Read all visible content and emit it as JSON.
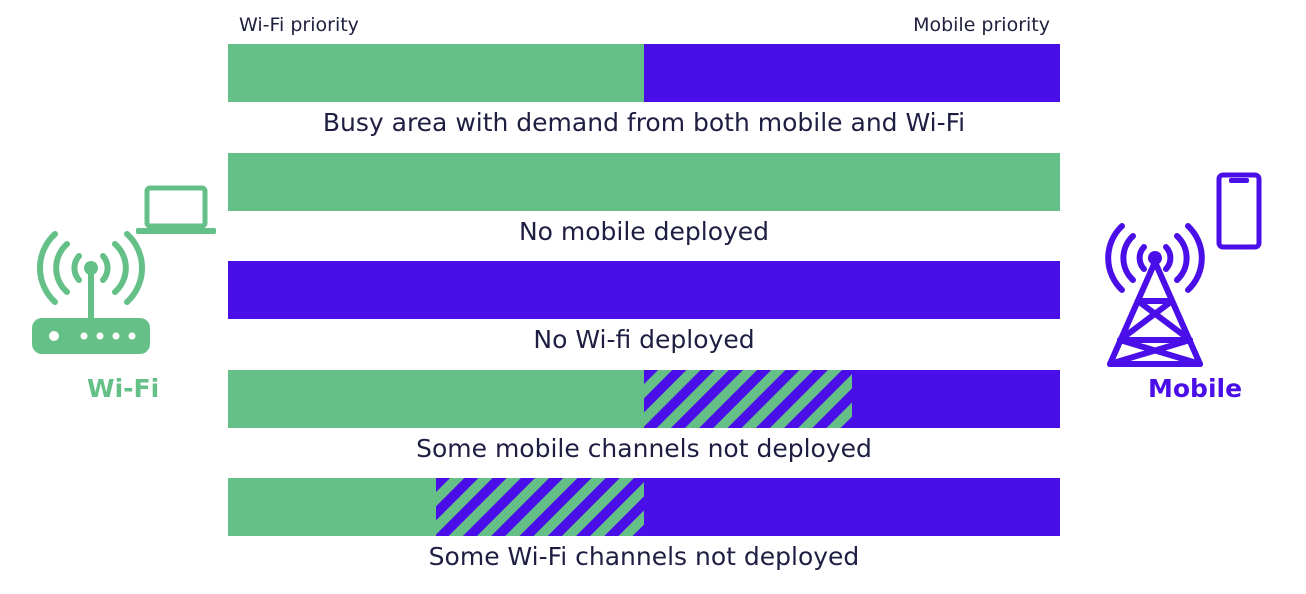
{
  "colors": {
    "wifi": "#65c088",
    "mobile": "#4a0fe8",
    "text": "#1e1e42"
  },
  "axis": {
    "left_label": "Wi-Fi priority",
    "right_label": "Mobile priority"
  },
  "rows": [
    {
      "caption": "Busy area with demand from both mobile and Wi-Fi",
      "segments": [
        {
          "type": "wifi",
          "start": 0,
          "end": 0.5
        },
        {
          "type": "mobile",
          "start": 0.5,
          "end": 1
        }
      ]
    },
    {
      "caption": "No mobile deployed",
      "segments": [
        {
          "type": "wifi",
          "start": 0,
          "end": 1
        }
      ]
    },
    {
      "caption": "No Wi-fi deployed",
      "segments": [
        {
          "type": "mobile",
          "start": 0,
          "end": 1
        }
      ]
    },
    {
      "caption": "Some mobile channels not deployed",
      "segments": [
        {
          "type": "wifi",
          "start": 0,
          "end": 0.5
        },
        {
          "type": "hatched",
          "start": 0.5,
          "end": 0.75
        },
        {
          "type": "mobile",
          "start": 0.75,
          "end": 1
        }
      ]
    },
    {
      "caption": "Some Wi-Fi channels not deployed",
      "segments": [
        {
          "type": "wifi",
          "start": 0,
          "end": 0.25
        },
        {
          "type": "hatched",
          "start": 0.25,
          "end": 0.5
        },
        {
          "type": "mobile",
          "start": 0.5,
          "end": 1
        }
      ]
    }
  ],
  "left_side": {
    "label": "Wi-Fi",
    "icons": [
      "laptop-icon",
      "wifi-router-icon"
    ]
  },
  "right_side": {
    "label": "Mobile",
    "icons": [
      "smartphone-icon",
      "cell-tower-icon"
    ]
  }
}
